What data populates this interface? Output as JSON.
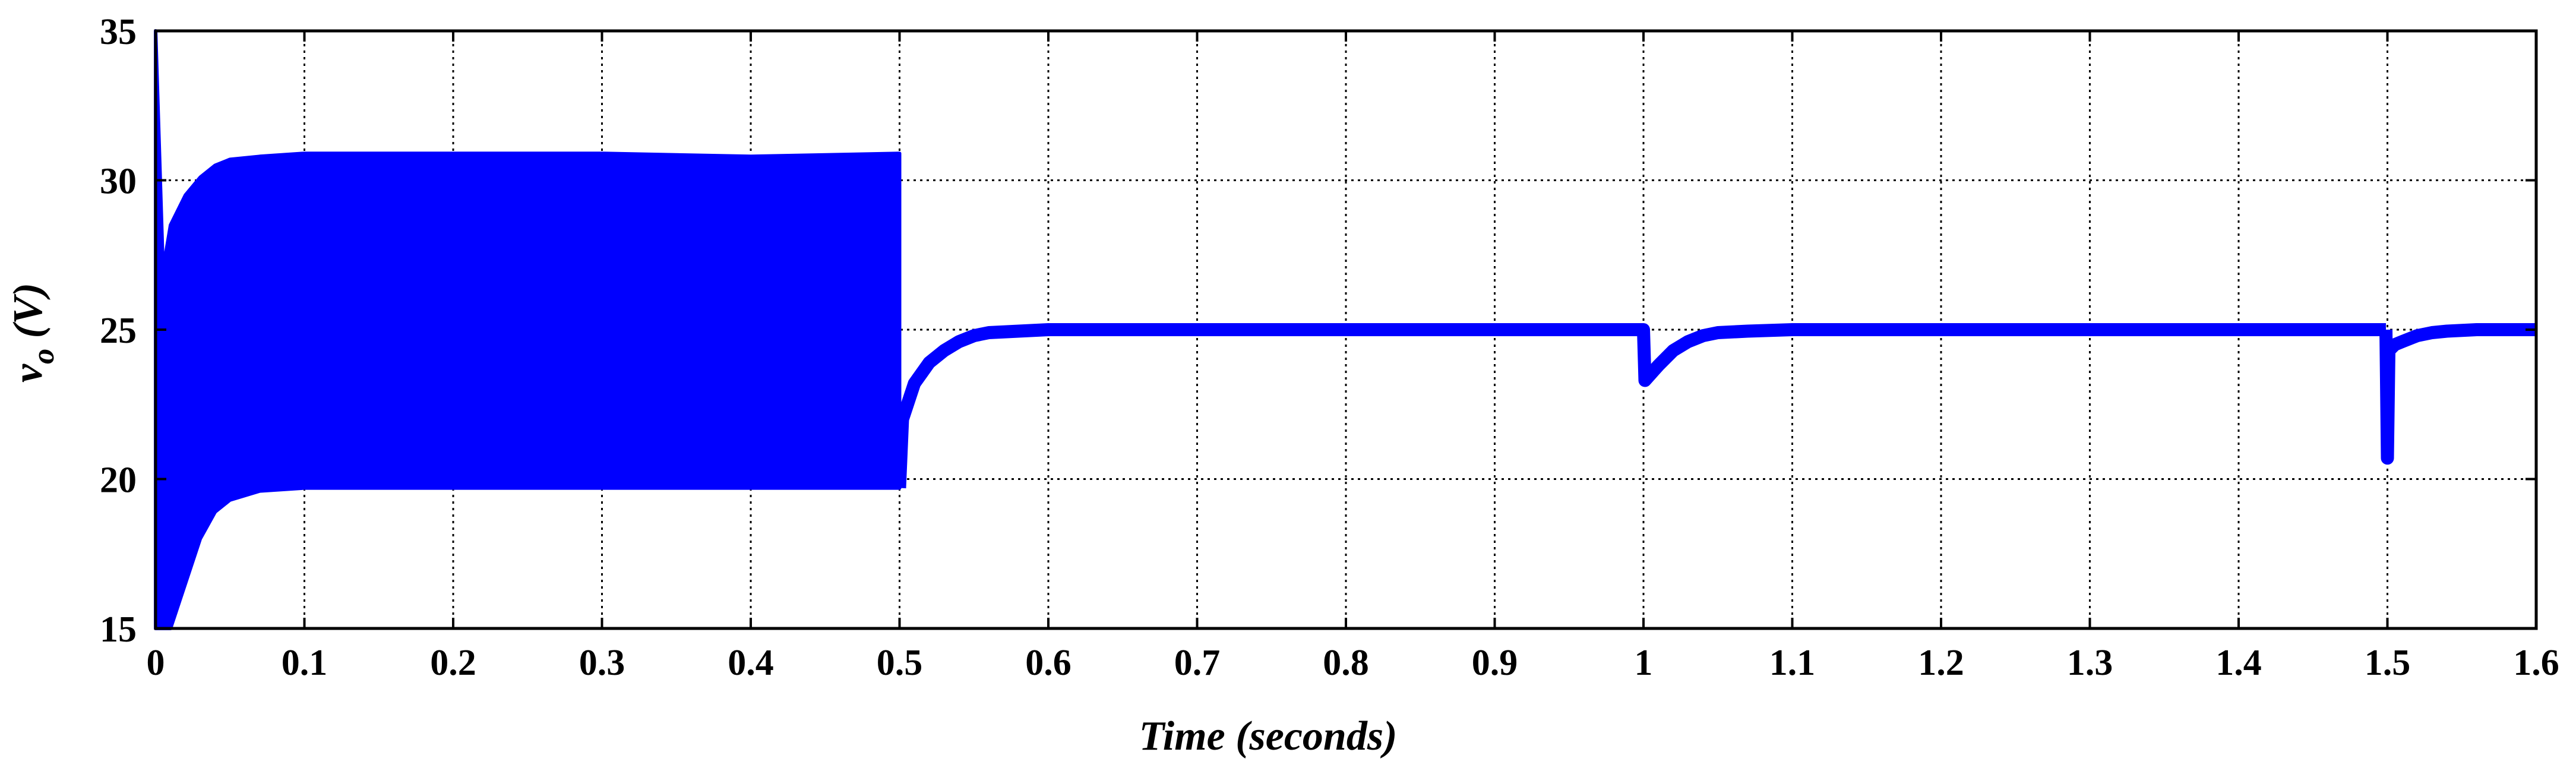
{
  "chart_data": {
    "type": "line",
    "title": "",
    "xlabel": "Time (seconds)",
    "ylabel": {
      "main": "v",
      "subscript": "o",
      "unit": " (V)"
    },
    "xlim": [
      0,
      1.6
    ],
    "ylim": [
      15,
      35
    ],
    "x_ticks": [
      0,
      0.1,
      0.2,
      0.3,
      0.4,
      0.5,
      0.6,
      0.7,
      0.8,
      0.9,
      1,
      1.1,
      1.2,
      1.3,
      1.4,
      1.5,
      1.6
    ],
    "x_tick_labels": [
      "0",
      "0.1",
      "0.2",
      "0.3",
      "0.4",
      "0.5",
      "0.6",
      "0.7",
      "0.8",
      "0.9",
      "1",
      "1.1",
      "1.2",
      "1.3",
      "1.4",
      "1.5",
      "1.6"
    ],
    "y_ticks": [
      15,
      20,
      25,
      30,
      35
    ],
    "y_tick_labels": [
      "15",
      "20",
      "25",
      "30",
      "35"
    ],
    "grid": true,
    "series": [
      {
        "name": "v_o",
        "color": "#0000ff",
        "segments": [
          {
            "kind": "oscillation_band",
            "x": [
              0,
              0.005,
              0.01,
              0.02,
              0.03,
              0.04,
              0.05,
              0.07,
              0.1,
              0.2,
              0.3,
              0.4,
              0.5
            ],
            "upper": [
              35,
              27,
              28.5,
              29.5,
              30.1,
              30.5,
              30.7,
              30.8,
              30.9,
              30.9,
              30.9,
              30.8,
              30.9
            ],
            "lower": [
              15,
              15,
              15,
              16.5,
              18,
              18.9,
              19.3,
              19.6,
              19.7,
              19.7,
              19.7,
              19.7,
              19.7
            ]
          },
          {
            "kind": "settling",
            "x": [
              0.5,
              0.502,
              0.51,
              0.52,
              0.53,
              0.54,
              0.55,
              0.56,
              0.58,
              0.6,
              0.7,
              0.8,
              0.9,
              0.998
            ],
            "y": [
              19.7,
              22.0,
              23.2,
              23.9,
              24.3,
              24.6,
              24.8,
              24.9,
              24.95,
              25,
              25,
              25,
              25,
              25
            ]
          },
          {
            "kind": "disturbance",
            "x": [
              0.998,
              1.0,
              1.001,
              1.01,
              1.02,
              1.03,
              1.04,
              1.05,
              1.07,
              1.1,
              1.2,
              1.3,
              1.4,
              1.499
            ],
            "y": [
              25,
              25,
              23.3,
              23.8,
              24.3,
              24.6,
              24.8,
              24.9,
              24.95,
              25,
              25,
              25,
              25,
              25
            ]
          },
          {
            "kind": "disturbance",
            "x": [
              1.499,
              1.5,
              1.501,
              1.505,
              1.51,
              1.52,
              1.53,
              1.54,
              1.56,
              1.6
            ],
            "y": [
              25,
              20.7,
              24.3,
              24.5,
              24.6,
              24.8,
              24.9,
              24.95,
              25,
              25
            ]
          }
        ]
      }
    ]
  }
}
